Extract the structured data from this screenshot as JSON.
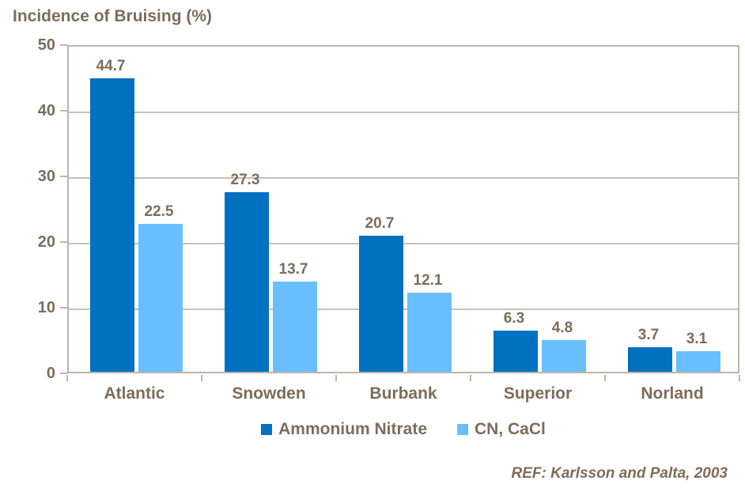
{
  "title": "Incidence of Bruising (%)",
  "ref_note": "REF: Karlsson and Palta, 2003",
  "colors": {
    "series1": "#0070C0",
    "series2": "#69BEFF",
    "text": "#7D6C58",
    "plot_border": "#BDB5AB",
    "gridline": "#C8C0B7",
    "background": "#FFFFFF"
  },
  "legend": {
    "items": [
      {
        "label": "Ammonium Nitrate",
        "color": "#0070C0"
      },
      {
        "label": "CN, CaCl",
        "color": "#69BEFF"
      }
    ]
  },
  "chart_data": {
    "type": "bar",
    "title": "Incidence of Bruising (%)",
    "categories": [
      "Atlantic",
      "Snowden",
      "Burbank",
      "Superior",
      "Norland"
    ],
    "series": [
      {
        "name": "Ammonium Nitrate",
        "color": "#0070C0",
        "values": [
          44.7,
          27.3,
          20.7,
          6.3,
          3.7
        ]
      },
      {
        "name": "CN, CaCl",
        "color": "#69BEFF",
        "values": [
          22.5,
          13.7,
          12.1,
          4.8,
          3.1
        ]
      }
    ],
    "xlabel": "",
    "ylabel": "Incidence of Bruising (%)",
    "ylim": [
      0,
      50
    ],
    "yticks": [
      0,
      10,
      20,
      30,
      40,
      50
    ],
    "grid": true,
    "data_labels": true,
    "legend_position": "bottom",
    "annotation": "REF: Karlsson and Palta, 2003"
  }
}
